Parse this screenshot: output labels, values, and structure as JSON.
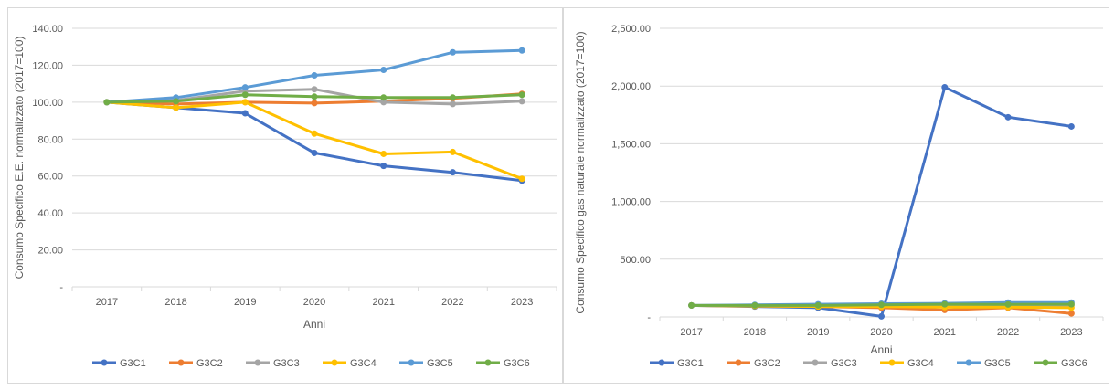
{
  "chart_data": [
    {
      "type": "line",
      "x": [
        "2017",
        "2018",
        "2019",
        "2020",
        "2021",
        "2022",
        "2023"
      ],
      "ylabel": "Consumo Specifico E.E. normalizzato (2017=100)",
      "xlabel": "Anni",
      "ylim": [
        0,
        140
      ],
      "yticks": [
        "-",
        "20.00",
        "40.00",
        "60.00",
        "80.00",
        "100.00",
        "120.00",
        "140.00"
      ],
      "grid": "horizontal",
      "legend": "bottom",
      "series": [
        {
          "name": "G3C1",
          "color": "#4472C4",
          "values": [
            100,
            97,
            94,
            72.5,
            65.5,
            62,
            57.5
          ]
        },
        {
          "name": "G3C2",
          "color": "#ED7D31",
          "values": [
            100,
            99,
            100,
            99.5,
            100.5,
            102,
            104.5
          ]
        },
        {
          "name": "G3C3",
          "color": "#A5A5A5",
          "values": [
            100,
            101,
            106,
            107,
            100,
            99,
            100.5
          ]
        },
        {
          "name": "G3C4",
          "color": "#FFC000",
          "values": [
            100,
            97,
            100,
            83,
            72,
            73,
            58.5
          ]
        },
        {
          "name": "G3C5",
          "color": "#5B9BD5",
          "values": [
            100,
            102.5,
            108,
            114.5,
            117.5,
            127,
            128
          ]
        },
        {
          "name": "G3C6",
          "color": "#70AD47",
          "values": [
            100,
            100.5,
            104,
            103,
            102.5,
            102.5,
            104
          ]
        }
      ]
    },
    {
      "type": "line",
      "x": [
        "2017",
        "2018",
        "2019",
        "2020",
        "2021",
        "2022",
        "2023"
      ],
      "ylabel": "Consumo Specifico gas naturale normalizzato (2017=100)",
      "xlabel": "Anni",
      "ylim": [
        0,
        2500
      ],
      "yticks": [
        "-",
        "500.00",
        "1,000.00",
        "1,500.00",
        "2,000.00",
        "2,500.00"
      ],
      "grid": "horizontal",
      "legend": "bottom",
      "series": [
        {
          "name": "G3C1",
          "color": "#4472C4",
          "values": [
            100,
            90,
            80,
            5,
            1990,
            1730,
            1650
          ]
        },
        {
          "name": "G3C2",
          "color": "#ED7D31",
          "values": [
            100,
            95,
            90,
            80,
            60,
            80,
            30
          ]
        },
        {
          "name": "G3C3",
          "color": "#A5A5A5",
          "values": [
            100,
            100,
            100,
            100,
            100,
            100,
            100
          ]
        },
        {
          "name": "G3C4",
          "color": "#FFC000",
          "values": [
            100,
            95,
            90,
            90,
            85,
            85,
            80
          ]
        },
        {
          "name": "G3C5",
          "color": "#5B9BD5",
          "values": [
            100,
            105,
            110,
            115,
            118,
            125,
            125
          ]
        },
        {
          "name": "G3C6",
          "color": "#70AD47",
          "values": [
            100,
            100,
            100,
            105,
            110,
            108,
            110
          ]
        }
      ]
    }
  ]
}
